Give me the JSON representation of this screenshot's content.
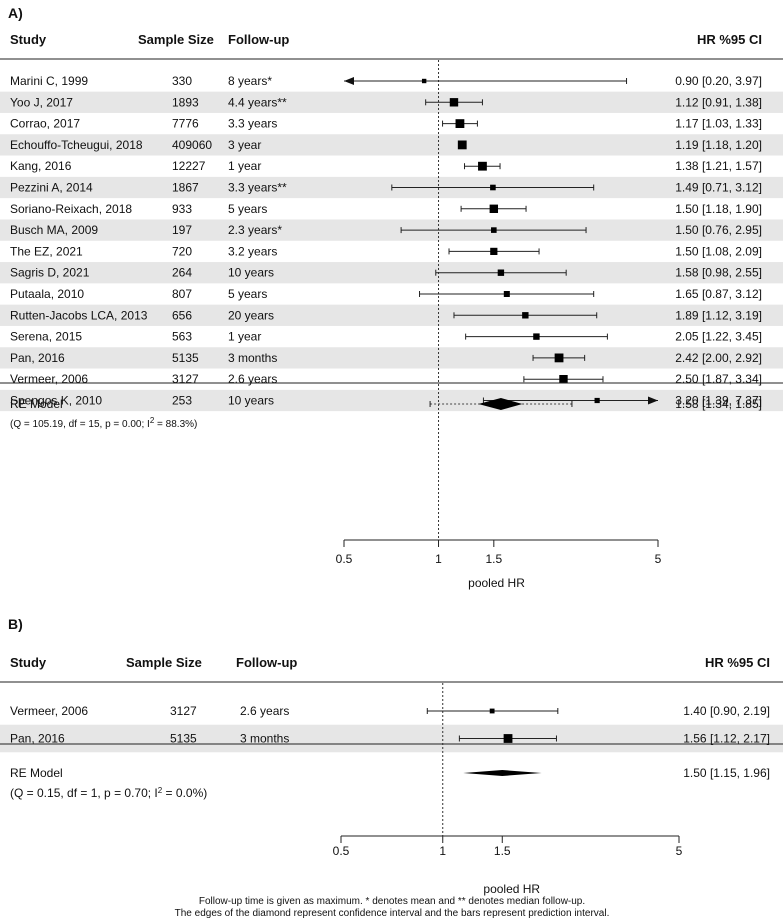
{
  "chart_data": [
    {
      "type": "forest",
      "panel_label": "A)",
      "headers": {
        "study": "Study",
        "sample_size": "Sample Size",
        "follow_up": "Follow-up",
        "hr": "HR %95 CI"
      },
      "xaxis": {
        "scale": "log",
        "ticks": [
          0.5,
          1,
          1.5,
          5
        ],
        "tick_labels": [
          "0.5",
          "1",
          "1.5",
          "5"
        ],
        "label": "pooled HR",
        "reference_line": 1
      },
      "studies": [
        {
          "study": "Marini C, 1999",
          "n": "330",
          "follow_up": "8 years*",
          "hr": 0.9,
          "lo": 0.2,
          "hi": 3.97,
          "hr_text": "0.90 [0.20, 3.97]",
          "weight": 0.3
        },
        {
          "study": "Yoo J, 2017",
          "n": "1893",
          "follow_up": "4.4 years**",
          "hr": 1.12,
          "lo": 0.91,
          "hi": 1.38,
          "hr_text": "1.12 [0.91, 1.38]",
          "weight": 0.8
        },
        {
          "study": "Corrao, 2017",
          "n": "7776",
          "follow_up": "3.3 years",
          "hr": 1.17,
          "lo": 1.03,
          "hi": 1.33,
          "hr_text": "1.17 [1.03, 1.33]",
          "weight": 0.85
        },
        {
          "study": "Echouffo-Tcheugui, 2018",
          "n": "409060",
          "follow_up": "3 year",
          "hr": 1.19,
          "lo": 1.18,
          "hi": 1.2,
          "hr_text": "1.19 [1.18, 1.20]",
          "weight": 0.85
        },
        {
          "study": "Kang, 2016",
          "n": "12227",
          "follow_up": "1 year",
          "hr": 1.38,
          "lo": 1.21,
          "hi": 1.57,
          "hr_text": "1.38 [1.21, 1.57]",
          "weight": 0.85
        },
        {
          "study": "Pezzini A, 2014",
          "n": "1867",
          "follow_up": "3.3 years**",
          "hr": 1.49,
          "lo": 0.71,
          "hi": 3.12,
          "hr_text": "1.49 [0.71, 3.12]",
          "weight": 0.45
        },
        {
          "study": "Soriano-Reixach, 2018",
          "n": "933",
          "follow_up": "5 years",
          "hr": 1.5,
          "lo": 1.18,
          "hi": 1.9,
          "hr_text": "1.50 [1.18, 1.90]",
          "weight": 0.8
        },
        {
          "study": "Busch MA, 2009",
          "n": "197",
          "follow_up": "2.3 years*",
          "hr": 1.5,
          "lo": 0.76,
          "hi": 2.95,
          "hr_text": "1.50 [0.76, 2.95]",
          "weight": 0.45
        },
        {
          "study": "The EZ, 2021",
          "n": "720",
          "follow_up": "3.2 years",
          "hr": 1.5,
          "lo": 1.08,
          "hi": 2.09,
          "hr_text": "1.50 [1.08, 2.09]",
          "weight": 0.65
        },
        {
          "study": "Sagris D, 2021",
          "n": "264",
          "follow_up": "10 years",
          "hr": 1.58,
          "lo": 0.98,
          "hi": 2.55,
          "hr_text": "1.58 [0.98, 2.55]",
          "weight": 0.55
        },
        {
          "study": "Putaala, 2010",
          "n": "807",
          "follow_up": "5 years",
          "hr": 1.65,
          "lo": 0.87,
          "hi": 3.12,
          "hr_text": "1.65 [0.87, 3.12]",
          "weight": 0.5
        },
        {
          "study": "Rutten-Jacobs LCA, 2013",
          "n": "656",
          "follow_up": "20 years",
          "hr": 1.89,
          "lo": 1.12,
          "hi": 3.19,
          "hr_text": "1.89 [1.12, 3.19]",
          "weight": 0.55
        },
        {
          "study": "Serena, 2015",
          "n": "563",
          "follow_up": "1 year",
          "hr": 2.05,
          "lo": 1.22,
          "hi": 3.45,
          "hr_text": "2.05 [1.22, 3.45]",
          "weight": 0.55
        },
        {
          "study": "Pan, 2016",
          "n": "5135",
          "follow_up": "3 months",
          "hr": 2.42,
          "lo": 2.0,
          "hi": 2.92,
          "hr_text": "2.42 [2.00, 2.92]",
          "weight": 0.85
        },
        {
          "study": "Vermeer, 2006",
          "n": "3127",
          "follow_up": "2.6 years",
          "hr": 2.5,
          "lo": 1.87,
          "hi": 3.34,
          "hr_text": "2.50 [1.87, 3.34]",
          "weight": 0.8
        },
        {
          "study": "Spengos K, 2010",
          "n": "253",
          "follow_up": "10 years",
          "hr": 3.2,
          "lo": 1.39,
          "hi": 7.37,
          "hr_text": "3.20 [1.39, 7.37]",
          "weight": 0.4
        }
      ],
      "pooled": {
        "label": "RE Model",
        "hr": 1.58,
        "lo": 1.34,
        "hi": 1.85,
        "pi_lo": 0.94,
        "pi_hi": 2.66,
        "hr_text": "1.58 [1.34, 1.85]",
        "stats_pre": "(Q = 105.19, df = 15, p = 0.00; I",
        "stats_sup": "2",
        "stats_post": " = 88.3%)"
      }
    },
    {
      "type": "forest",
      "panel_label": "B)",
      "headers": {
        "study": "Study",
        "sample_size": "Sample Size",
        "follow_up": "Follow-up",
        "hr": "HR %95 CI"
      },
      "xaxis": {
        "scale": "log",
        "ticks": [
          0.5,
          1,
          1.5,
          5
        ],
        "tick_labels": [
          "0.5",
          "1",
          "1.5",
          "5"
        ],
        "label": "pooled HR",
        "reference_line": 1
      },
      "studies": [
        {
          "study": "Vermeer, 2006",
          "n": "3127",
          "follow_up": "2.6 years",
          "hr": 1.4,
          "lo": 0.9,
          "hi": 2.19,
          "hr_text": "1.40 [0.90, 2.19]",
          "weight": 0.35
        },
        {
          "study": "Pan, 2016",
          "n": "5135",
          "follow_up": "3 months",
          "hr": 1.56,
          "lo": 1.12,
          "hi": 2.17,
          "hr_text": "1.56 [1.12, 2.17]",
          "weight": 0.85
        }
      ],
      "pooled": {
        "label": "RE Model",
        "hr": 1.5,
        "lo": 1.15,
        "hi": 1.96,
        "pi_lo": null,
        "pi_hi": null,
        "hr_text": "1.50 [1.15, 1.96]",
        "stats_pre": "(Q = 0.15, df = 1, p = 0.70; I",
        "stats_sup": "2",
        "stats_post": " = 0.0%)"
      }
    }
  ],
  "footnotes": [
    "Follow-up time is given as maximum.  * denotes mean and ** denotes median follow-up.",
    "The edges of the diamond represent confidence interval and the bars represent prediction interval."
  ]
}
